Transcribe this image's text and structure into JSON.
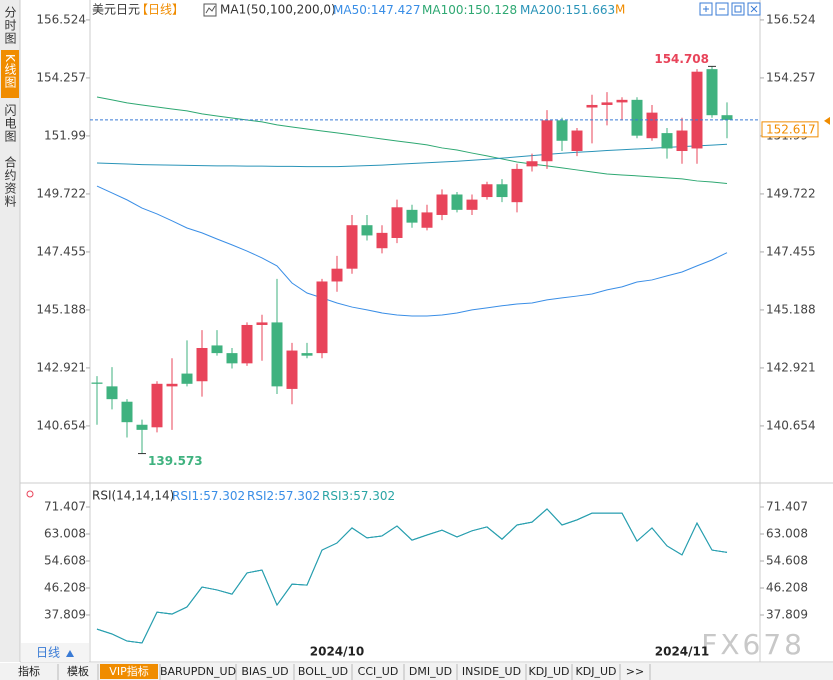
{
  "sidebar": {
    "tabs": [
      "分时图",
      "K线图",
      "闪电图",
      "合约资料"
    ],
    "active": 1
  },
  "chart_data": [
    {
      "type": "candlestick",
      "title": "美元日元",
      "period": "【日线】",
      "indicator": "MA1(50,100,200,0)",
      "legend_separator": ":",
      "period_tab": "日线",
      "up_color": "#e8445a",
      "down_color": "#3fb27f",
      "categories": [
        null,
        null,
        null,
        null,
        null,
        null,
        null,
        null,
        null,
        null,
        null,
        null,
        null,
        null,
        null,
        null,
        "2024/10",
        null,
        null,
        null,
        null,
        null,
        null,
        null,
        null,
        null,
        null,
        null,
        null,
        null,
        null,
        null,
        null,
        null,
        null,
        null,
        null,
        null,
        null,
        "2024/11",
        null,
        null,
        null
      ],
      "open": [
        142.35,
        142.2,
        141.6,
        140.7,
        140.6,
        142.2,
        142.7,
        142.4,
        143.8,
        143.5,
        143.1,
        144.6,
        144.7,
        142.1,
        143.5,
        143.5,
        146.3,
        146.8,
        148.5,
        147.6,
        148.0,
        149.1,
        148.4,
        148.9,
        149.7,
        149.1,
        149.6,
        150.1,
        149.4,
        150.8,
        151.0,
        152.6,
        151.4,
        153.1,
        153.2,
        153.3,
        153.4,
        151.9,
        152.1,
        151.4,
        151.5,
        154.6,
        152.8
      ],
      "high": [
        142.6,
        142.95,
        141.7,
        140.9,
        142.4,
        143.3,
        144.0,
        144.4,
        144.4,
        143.7,
        144.7,
        145.0,
        146.4,
        143.9,
        143.9,
        146.4,
        147.3,
        148.9,
        148.9,
        148.5,
        149.5,
        149.3,
        149.3,
        149.9,
        149.8,
        149.7,
        150.2,
        150.3,
        150.9,
        151.3,
        153.0,
        152.7,
        152.3,
        153.6,
        153.7,
        153.5,
        153.5,
        153.2,
        152.3,
        152.7,
        154.6,
        154.708,
        153.3
      ],
      "low": [
        140.7,
        141.3,
        140.2,
        139.573,
        140.4,
        140.5,
        142.2,
        141.8,
        143.4,
        142.9,
        143.0,
        143.2,
        141.9,
        141.5,
        143.3,
        143.3,
        145.9,
        146.6,
        147.9,
        147.4,
        147.8,
        148.4,
        148.3,
        148.7,
        149.0,
        148.9,
        149.5,
        149.4,
        149.0,
        150.6,
        150.7,
        151.4,
        151.2,
        151.7,
        152.4,
        152.6,
        151.9,
        151.8,
        151.1,
        150.9,
        150.9,
        152.7,
        151.9
      ],
      "close": [
        142.3,
        141.7,
        140.8,
        140.5,
        142.3,
        142.3,
        142.3,
        143.7,
        143.5,
        143.1,
        144.6,
        144.7,
        142.2,
        143.6,
        143.4,
        146.3,
        146.8,
        148.5,
        148.1,
        148.2,
        149.2,
        148.6,
        149.0,
        149.7,
        149.1,
        149.5,
        150.1,
        149.6,
        150.7,
        151.0,
        152.6,
        151.8,
        152.2,
        153.2,
        153.3,
        153.4,
        152.0,
        152.9,
        151.5,
        152.2,
        154.5,
        152.8,
        152.617
      ],
      "series": [
        {
          "name": "MA50",
          "color": "#3a8ee6",
          "values": [
            150.03,
            149.76,
            149.49,
            149.17,
            148.94,
            148.67,
            148.39,
            148.2,
            147.96,
            147.73,
            147.49,
            147.22,
            146.91,
            146.24,
            145.85,
            145.66,
            145.46,
            145.3,
            145.19,
            145.07,
            144.99,
            144.95,
            144.95,
            144.99,
            145.07,
            145.19,
            145.27,
            145.35,
            145.42,
            145.46,
            145.58,
            145.66,
            145.73,
            145.81,
            145.97,
            146.09,
            146.28,
            146.36,
            146.52,
            146.67,
            146.91,
            147.14,
            147.427
          ]
        },
        {
          "name": "MA100",
          "color": "#2ea872",
          "values": [
            153.51,
            153.4,
            153.28,
            153.2,
            153.12,
            153.04,
            152.97,
            152.85,
            152.77,
            152.69,
            152.61,
            152.54,
            152.42,
            152.34,
            152.26,
            152.18,
            152.11,
            152.03,
            151.95,
            151.87,
            151.79,
            151.72,
            151.64,
            151.52,
            151.44,
            151.32,
            151.21,
            151.09,
            150.97,
            150.89,
            150.82,
            150.74,
            150.66,
            150.58,
            150.5,
            150.46,
            150.43,
            150.39,
            150.35,
            150.31,
            150.23,
            150.19,
            150.128
          ]
        },
        {
          "name": "MA200",
          "color": "#2a94b8",
          "values": [
            150.93,
            150.91,
            150.89,
            150.87,
            150.86,
            150.85,
            150.84,
            150.83,
            150.82,
            150.82,
            150.81,
            150.81,
            150.8,
            150.8,
            150.79,
            150.79,
            150.79,
            150.81,
            150.83,
            150.85,
            150.88,
            150.91,
            150.94,
            150.97,
            151.0,
            151.04,
            151.08,
            151.12,
            151.17,
            151.22,
            151.27,
            151.31,
            151.35,
            151.38,
            151.42,
            151.45,
            151.48,
            151.51,
            151.54,
            151.57,
            151.6,
            151.63,
            151.663
          ]
        }
      ],
      "ylim": [
        138.54,
        156.99
      ],
      "yticks": [
        156.524,
        154.257,
        151.99,
        149.722,
        147.455,
        145.188,
        142.921,
        140.654
      ]
    },
    {
      "type": "line",
      "title": "RSI(14,14,14)",
      "legend_separator": ":",
      "series": [
        {
          "name": "RSI1",
          "color": "#3a8ee6",
          "values": [
            33.4,
            31.9,
            29.7,
            29.1,
            38.7,
            38.1,
            40.3,
            46.5,
            45.6,
            44.3,
            50.9,
            51.8,
            40.9,
            47.4,
            47.1,
            58.0,
            60.2,
            64.9,
            61.8,
            62.4,
            65.5,
            61.1,
            62.7,
            64.2,
            62.1,
            64.0,
            65.2,
            61.4,
            65.8,
            66.7,
            70.8,
            65.8,
            67.4,
            69.5,
            69.5,
            69.5,
            60.8,
            64.9,
            59.3,
            56.5,
            66.4,
            58.0,
            57.302
          ]
        },
        {
          "name": "RSI2",
          "color": "#3a8ee6",
          "values": [
            33.4,
            31.9,
            29.7,
            29.1,
            38.7,
            38.1,
            40.3,
            46.5,
            45.6,
            44.3,
            50.9,
            51.8,
            40.9,
            47.4,
            47.1,
            58.0,
            60.2,
            64.9,
            61.8,
            62.4,
            65.5,
            61.1,
            62.7,
            64.2,
            62.1,
            64.0,
            65.2,
            61.4,
            65.8,
            66.7,
            70.8,
            65.8,
            67.4,
            69.5,
            69.5,
            69.5,
            60.8,
            64.9,
            59.3,
            56.5,
            66.4,
            58.0,
            57.302
          ]
        },
        {
          "name": "RSI3",
          "color": "#2aa5a5",
          "values": [
            33.4,
            31.9,
            29.7,
            29.1,
            38.7,
            38.1,
            40.3,
            46.5,
            45.6,
            44.3,
            50.9,
            51.8,
            40.9,
            47.4,
            47.1,
            58.0,
            60.2,
            64.9,
            61.8,
            62.4,
            65.5,
            61.1,
            62.7,
            64.2,
            62.1,
            64.0,
            65.2,
            61.4,
            65.8,
            66.7,
            70.8,
            65.8,
            67.4,
            69.5,
            69.5,
            69.5,
            60.8,
            64.9,
            59.3,
            56.5,
            66.4,
            58.0,
            57.302
          ]
        }
      ],
      "ylim": [
        23.18,
        77.32
      ],
      "yticks": [
        71.407,
        63.008,
        54.608,
        46.208,
        37.809
      ]
    }
  ],
  "menu_button": "M",
  "watermark": "FX678",
  "toolbar": [
    "指标",
    "模板",
    "VIP指标",
    "BARUPDN_UD",
    "BIAS_UD",
    "BOLL_UD",
    "CCI_UD",
    "DMI_UD",
    "INSIDE_UD",
    "KDJ_UD",
    "KDJ_UD",
    ">>"
  ]
}
